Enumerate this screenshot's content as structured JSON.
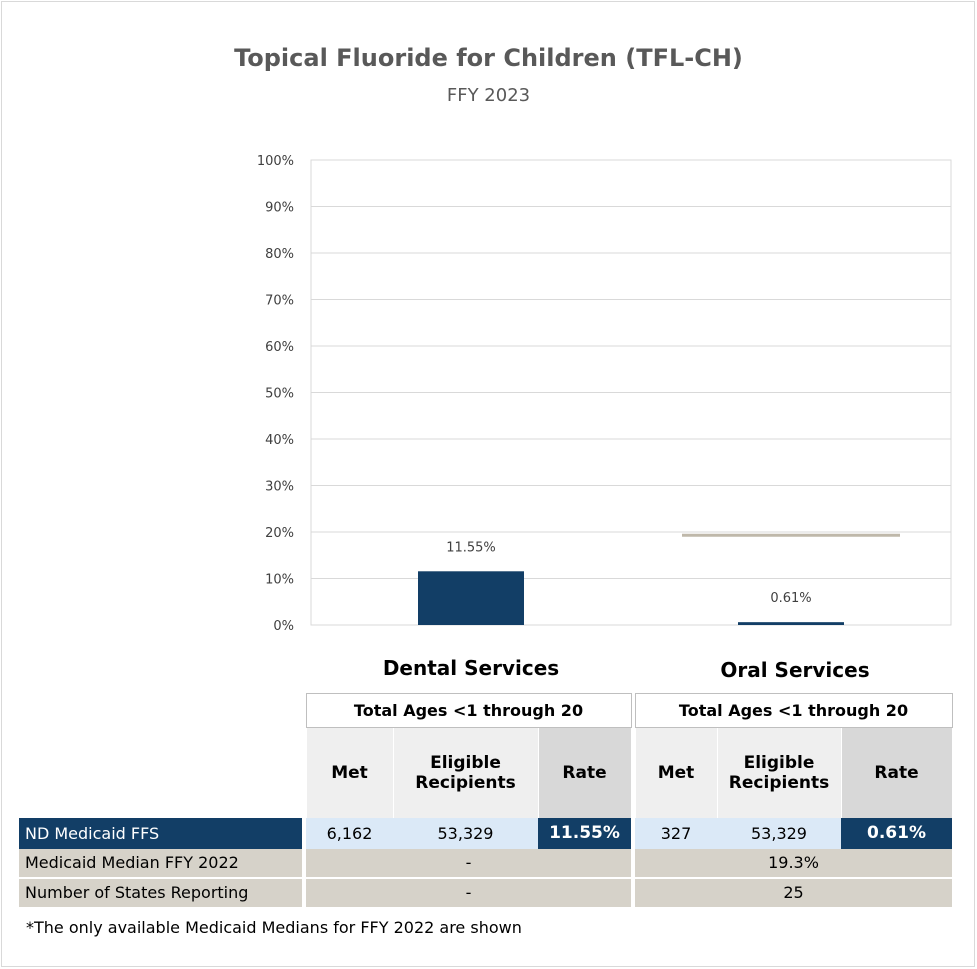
{
  "title": "Topical Fluoride for Children (TFL-CH)",
  "subtitle": "FFY 2023",
  "colors": {
    "bar": "#123e66",
    "median_line": "#bfb8aa",
    "grid": "#d9d9d9"
  },
  "chart_data": {
    "type": "bar",
    "title": "Topical Fluoride for Children (TFL-CH)",
    "subtitle": "FFY 2023",
    "categories": [
      "Dental Services",
      "Oral Services"
    ],
    "series": [
      {
        "name": "ND Medicaid FFS",
        "values": [
          11.55,
          0.61
        ]
      }
    ],
    "data_labels": [
      "11.55%",
      "0.61%"
    ],
    "reference_lines": [
      {
        "name": "Medicaid Median FFY 2022",
        "category": "Oral Services",
        "value": 19.3
      }
    ],
    "ylim": [
      0,
      100
    ],
    "yticks": [
      "0%",
      "10%",
      "20%",
      "30%",
      "40%",
      "50%",
      "60%",
      "70%",
      "80%",
      "90%",
      "100%"
    ],
    "grid": true,
    "xlabel": "",
    "ylabel": ""
  },
  "table": {
    "groups": [
      {
        "service": "Dental Services",
        "age_label": "Total Ages <1 through 20"
      },
      {
        "service": "Oral Services",
        "age_label": "Total Ages <1 through 20"
      }
    ],
    "col_headers": {
      "met": "Met",
      "eligible": "Eligible Recipients",
      "rate": "Rate"
    },
    "rows": {
      "ffs": {
        "label": "ND Medicaid FFS",
        "dental": {
          "met": "6,162",
          "eligible": "53,329",
          "rate": "11.55%"
        },
        "oral": {
          "met": "327",
          "eligible": "53,329",
          "rate": "0.61%"
        }
      },
      "median": {
        "label": "Medicaid Median FFY 2022",
        "dental": "-",
        "oral": "19.3%"
      },
      "states": {
        "label": "Number of States Reporting",
        "dental": "-",
        "oral": "25"
      }
    }
  },
  "footnote": "*The only available Medicaid Medians for FFY 2022 are shown"
}
